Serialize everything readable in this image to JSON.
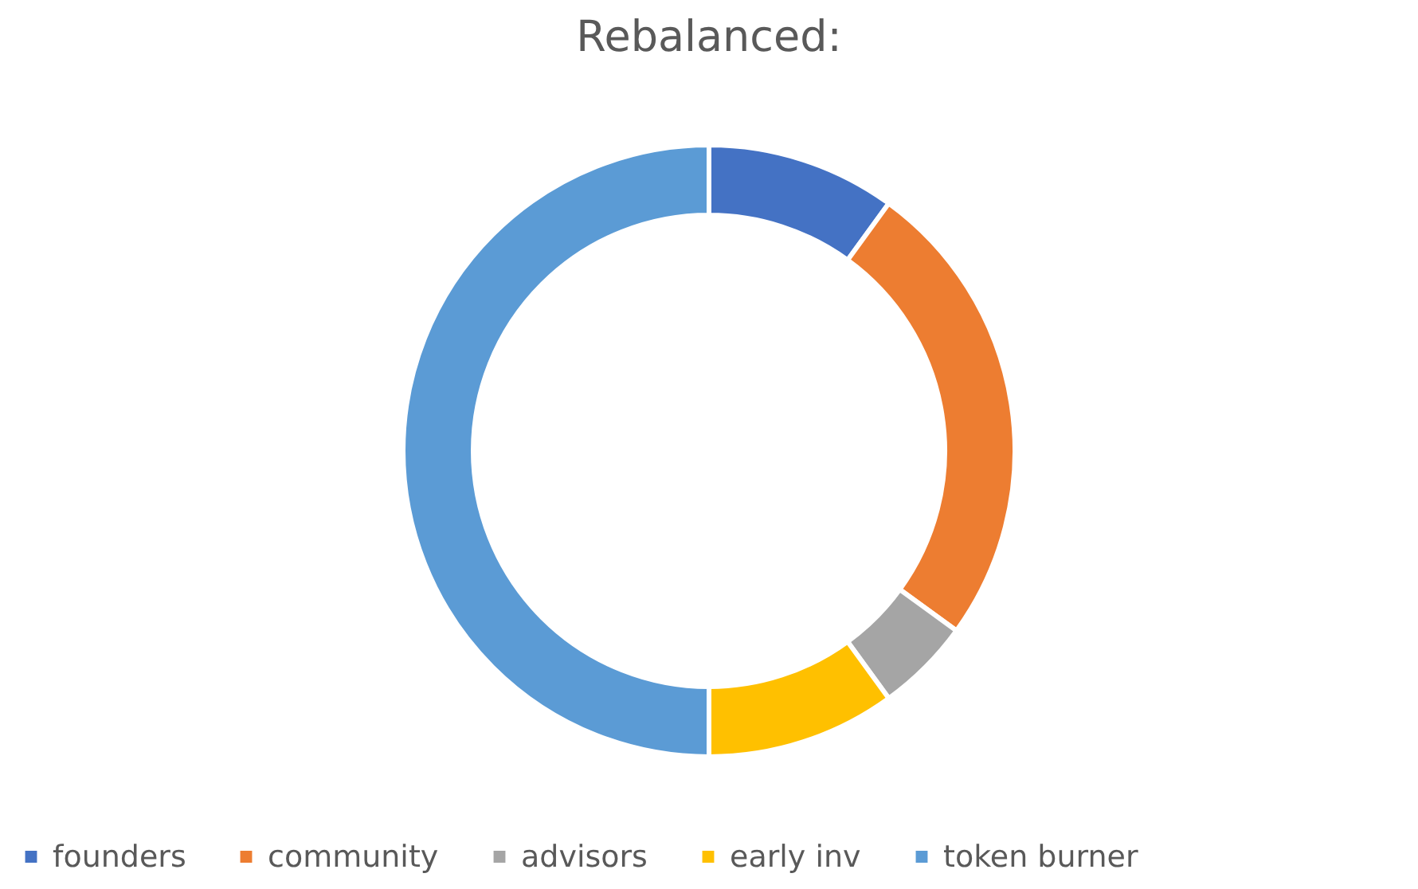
{
  "chart_data": {
    "type": "donut",
    "title": "Rebalanced:",
    "categories": [
      "founders",
      "community",
      "advisors",
      "early inv",
      "token burner"
    ],
    "values": [
      10,
      25,
      5,
      10,
      50
    ],
    "colors": [
      "#4472c4",
      "#ed7d31",
      "#a5a5a5",
      "#ffc000",
      "#5b9bd5"
    ],
    "legend": "bottom"
  }
}
